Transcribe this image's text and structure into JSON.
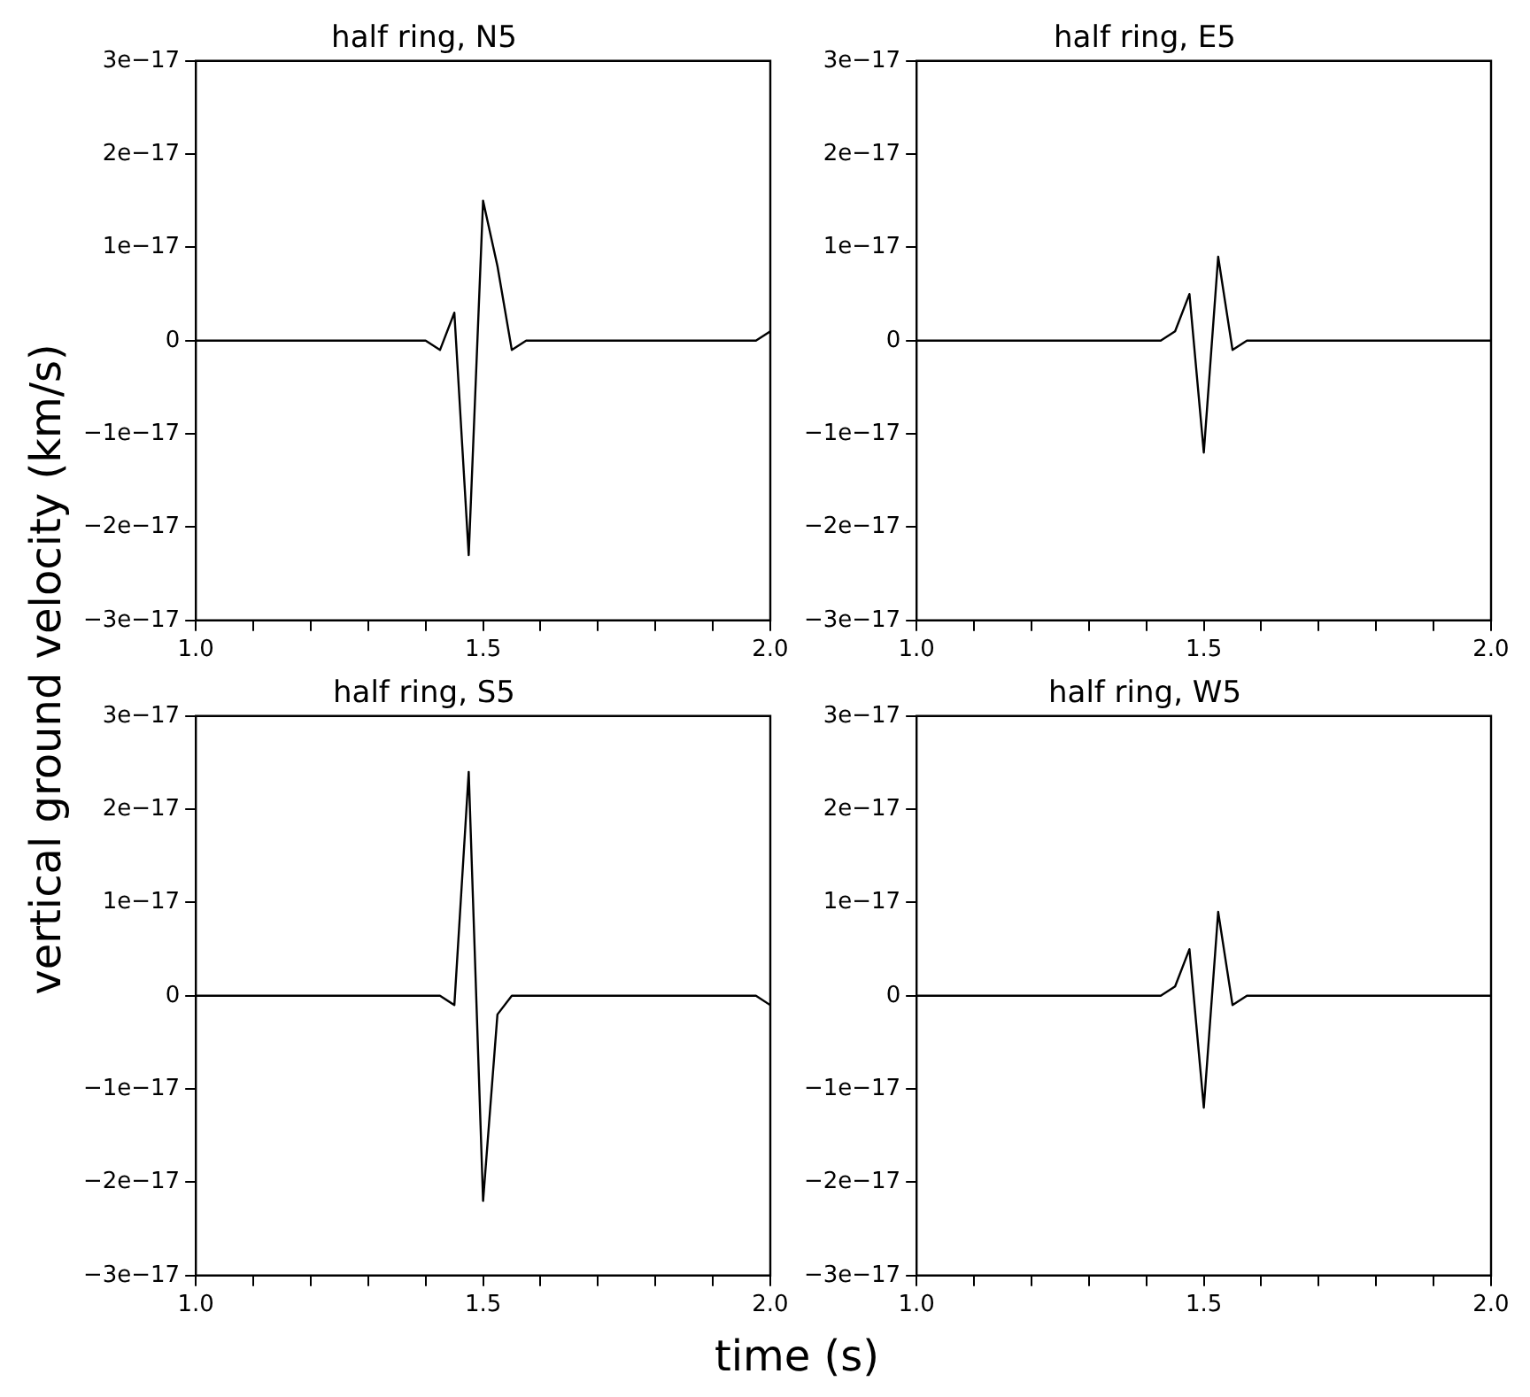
{
  "chart_data": [
    {
      "type": "line",
      "title": "half ring, N5",
      "ylabel": "vertical ground velocity (km/s)",
      "x": [
        1.0,
        1.4,
        1.425,
        1.45,
        1.475,
        1.5,
        1.525,
        1.55,
        1.575,
        1.975,
        2.0
      ],
      "series": [
        {
          "color": "#000000",
          "values": [
            0,
            0,
            -1e-18,
            3e-18,
            -2.3e-17,
            1.5e-17,
            8e-18,
            -1e-18,
            0,
            0,
            1e-18
          ]
        }
      ],
      "xlim": [
        1,
        2
      ],
      "xticks": [
        {
          "value": 1,
          "label": "1.0"
        },
        {
          "value": 1.1,
          "label": null
        },
        {
          "value": 1.2,
          "label": null
        },
        {
          "value": 1.3,
          "label": null
        },
        {
          "value": 1.4,
          "label": null
        },
        {
          "value": 1.5,
          "label": "1.5"
        },
        {
          "value": 1.6,
          "label": null
        },
        {
          "value": 1.7,
          "label": null
        },
        {
          "value": 1.8,
          "label": null
        },
        {
          "value": 1.9,
          "label": null
        },
        {
          "value": 2,
          "label": "2.0"
        }
      ],
      "ylim": [
        -3e-17,
        3e-17
      ],
      "yticks": [
        {
          "value": -3e-17,
          "label": "−3e−17"
        },
        {
          "value": -2e-17,
          "label": "−2e−17"
        },
        {
          "value": -1e-17,
          "label": "−1e−17"
        },
        {
          "value": 0,
          "label": "0"
        },
        {
          "value": 1e-17,
          "label": "1e−17"
        },
        {
          "value": 2e-17,
          "label": "2e−17"
        },
        {
          "value": 3e-17,
          "label": "3e−17"
        }
      ],
      "grid": false,
      "legend": false
    },
    {
      "type": "line",
      "title": "half ring, E5",
      "x": [
        1.0,
        1.425,
        1.45,
        1.475,
        1.5,
        1.525,
        1.55,
        1.575,
        1.975,
        2.0
      ],
      "series": [
        {
          "color": "#000000",
          "values": [
            0,
            0,
            1e-18,
            5e-18,
            -1.2e-17,
            9e-18,
            -1e-18,
            0,
            0,
            0
          ]
        }
      ],
      "xlim": [
        1,
        2
      ],
      "xticks": [
        {
          "value": 1,
          "label": "1.0"
        },
        {
          "value": 1.1,
          "label": null
        },
        {
          "value": 1.2,
          "label": null
        },
        {
          "value": 1.3,
          "label": null
        },
        {
          "value": 1.4,
          "label": null
        },
        {
          "value": 1.5,
          "label": "1.5"
        },
        {
          "value": 1.6,
          "label": null
        },
        {
          "value": 1.7,
          "label": null
        },
        {
          "value": 1.8,
          "label": null
        },
        {
          "value": 1.9,
          "label": null
        },
        {
          "value": 2,
          "label": "2.0"
        }
      ],
      "ylim": [
        -3e-17,
        3e-17
      ],
      "yticks": [
        {
          "value": -3e-17,
          "label": "−3e−17"
        },
        {
          "value": -2e-17,
          "label": "−2e−17"
        },
        {
          "value": -1e-17,
          "label": "−1e−17"
        },
        {
          "value": 0,
          "label": "0"
        },
        {
          "value": 1e-17,
          "label": "1e−17"
        },
        {
          "value": 2e-17,
          "label": "2e−17"
        },
        {
          "value": 3e-17,
          "label": "3e−17"
        }
      ],
      "grid": false,
      "legend": false
    },
    {
      "type": "line",
      "title": "half ring, S5",
      "xlabel": "time (s)",
      "x": [
        1.0,
        1.425,
        1.45,
        1.475,
        1.5,
        1.525,
        1.55,
        1.575,
        1.975,
        2.0
      ],
      "series": [
        {
          "color": "#000000",
          "values": [
            0,
            0,
            -1e-18,
            2.4e-17,
            -2.2e-17,
            -2e-18,
            0,
            0,
            0,
            -1e-18
          ]
        }
      ],
      "xlim": [
        1,
        2
      ],
      "xticks": [
        {
          "value": 1,
          "label": "1.0"
        },
        {
          "value": 1.1,
          "label": null
        },
        {
          "value": 1.2,
          "label": null
        },
        {
          "value": 1.3,
          "label": null
        },
        {
          "value": 1.4,
          "label": null
        },
        {
          "value": 1.5,
          "label": "1.5"
        },
        {
          "value": 1.6,
          "label": null
        },
        {
          "value": 1.7,
          "label": null
        },
        {
          "value": 1.8,
          "label": null
        },
        {
          "value": 1.9,
          "label": null
        },
        {
          "value": 2,
          "label": "2.0"
        }
      ],
      "ylim": [
        -3e-17,
        3e-17
      ],
      "yticks": [
        {
          "value": -3e-17,
          "label": "−3e−17"
        },
        {
          "value": -2e-17,
          "label": "−2e−17"
        },
        {
          "value": -1e-17,
          "label": "−1e−17"
        },
        {
          "value": 0,
          "label": "0"
        },
        {
          "value": 1e-17,
          "label": "1e−17"
        },
        {
          "value": 2e-17,
          "label": "2e−17"
        },
        {
          "value": 3e-17,
          "label": "3e−17"
        }
      ],
      "grid": false,
      "legend": false
    },
    {
      "type": "line",
      "title": "half ring, W5",
      "x": [
        1.0,
        1.425,
        1.45,
        1.475,
        1.5,
        1.525,
        1.55,
        1.575,
        1.975,
        2.0
      ],
      "series": [
        {
          "color": "#000000",
          "values": [
            0,
            0,
            1e-18,
            5e-18,
            -1.2e-17,
            9e-18,
            -1e-18,
            0,
            0,
            0
          ]
        }
      ],
      "xlim": [
        1,
        2
      ],
      "xticks": [
        {
          "value": 1,
          "label": "1.0"
        },
        {
          "value": 1.1,
          "label": null
        },
        {
          "value": 1.2,
          "label": null
        },
        {
          "value": 1.3,
          "label": null
        },
        {
          "value": 1.4,
          "label": null
        },
        {
          "value": 1.5,
          "label": "1.5"
        },
        {
          "value": 1.6,
          "label": null
        },
        {
          "value": 1.7,
          "label": null
        },
        {
          "value": 1.8,
          "label": null
        },
        {
          "value": 1.9,
          "label": null
        },
        {
          "value": 2,
          "label": "2.0"
        }
      ],
      "ylim": [
        -3e-17,
        3e-17
      ],
      "yticks": [
        {
          "value": -3e-17,
          "label": "−3e−17"
        },
        {
          "value": -2e-17,
          "label": "−2e−17"
        },
        {
          "value": -1e-17,
          "label": "−1e−17"
        },
        {
          "value": 0,
          "label": "0"
        },
        {
          "value": 1e-17,
          "label": "1e−17"
        },
        {
          "value": 2e-17,
          "label": "2e−17"
        },
        {
          "value": 3e-17,
          "label": "3e−17"
        }
      ],
      "grid": false,
      "legend": false
    }
  ]
}
